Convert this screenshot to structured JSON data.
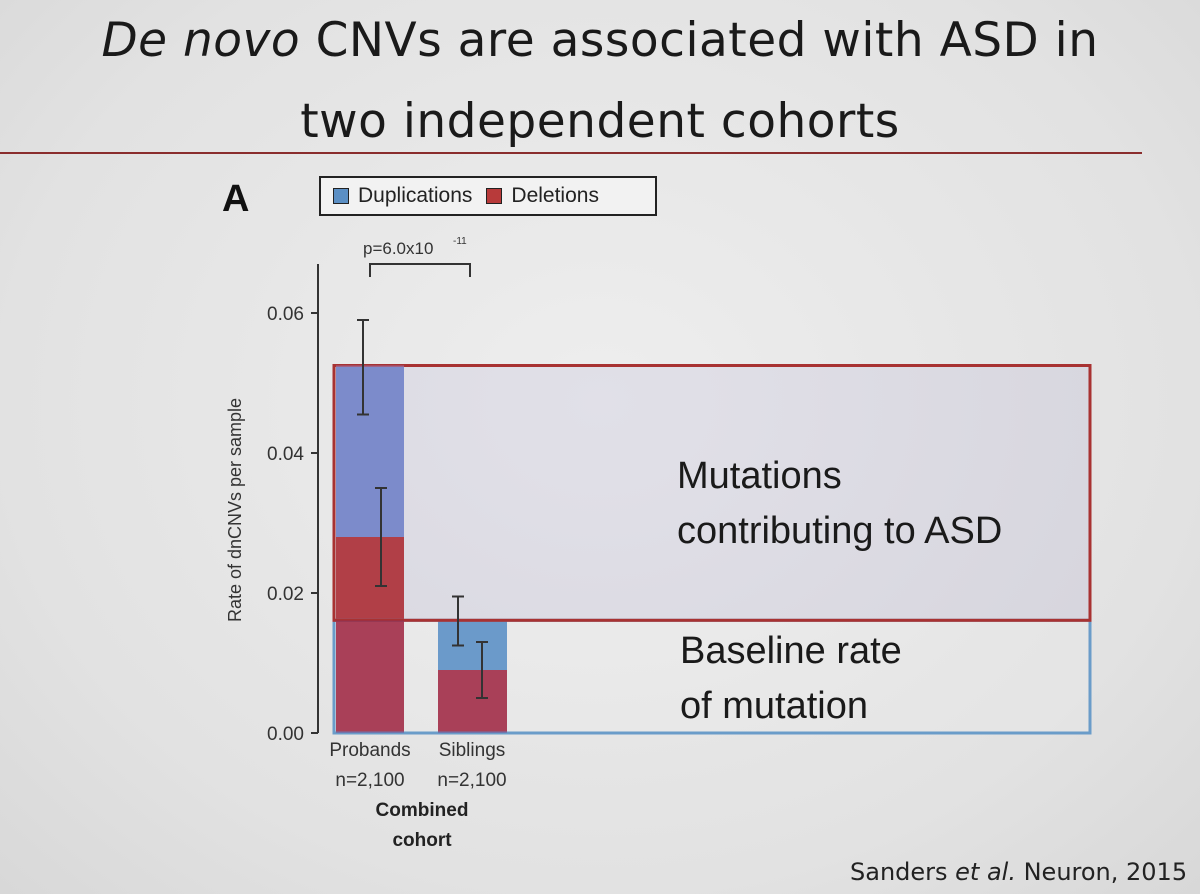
{
  "slide": {
    "title_italic": "De novo",
    "title_rest": " CNVs are associated with ASD in",
    "title_line2": "two independent cohorts",
    "panel_letter": "A",
    "citation_pre": "Sanders ",
    "citation_italic": "et al.",
    "citation_post": " Neuron, 2015"
  },
  "colors": {
    "duplications": "#5b8fc4",
    "deletions": "#b83a3a",
    "overlay_box_red": "#a83232",
    "overlay_box_blue": "#6a9cc9"
  },
  "chart_data": {
    "type": "bar",
    "stacked": true,
    "ylabel": "Rate of dnCNVs per sample",
    "ylim": [
      0,
      0.067
    ],
    "yticks": [
      "0.00",
      "0.02",
      "0.04",
      "0.06"
    ],
    "ytick_values": [
      0,
      0.02,
      0.04,
      0.06
    ],
    "categories": [
      "Probands",
      "Siblings"
    ],
    "category_n": [
      "n=2,100",
      "n=2,100"
    ],
    "group_label_line1": "Combined",
    "group_label_line2": "cohort",
    "series": [
      {
        "name": "Deletions",
        "values": [
          0.028,
          0.009
        ],
        "error": [
          [
            0.021,
            0.035
          ],
          [
            0.005,
            0.013
          ]
        ]
      },
      {
        "name": "Duplications",
        "values": [
          0.0245,
          0.0071
        ],
        "error": [
          [
            0.0455,
            0.059
          ],
          [
            0.0125,
            0.0195
          ]
        ]
      }
    ],
    "significance": {
      "label": "p=6.0x10",
      "exponent": "-11"
    },
    "annotations": [
      {
        "line1": "Mutations",
        "line2": "contributing to ASD",
        "from": 0.0161,
        "to": 0.0525
      },
      {
        "line1": "Baseline rate",
        "line2": "of mutation",
        "from": 0,
        "to": 0.0161
      }
    ]
  }
}
